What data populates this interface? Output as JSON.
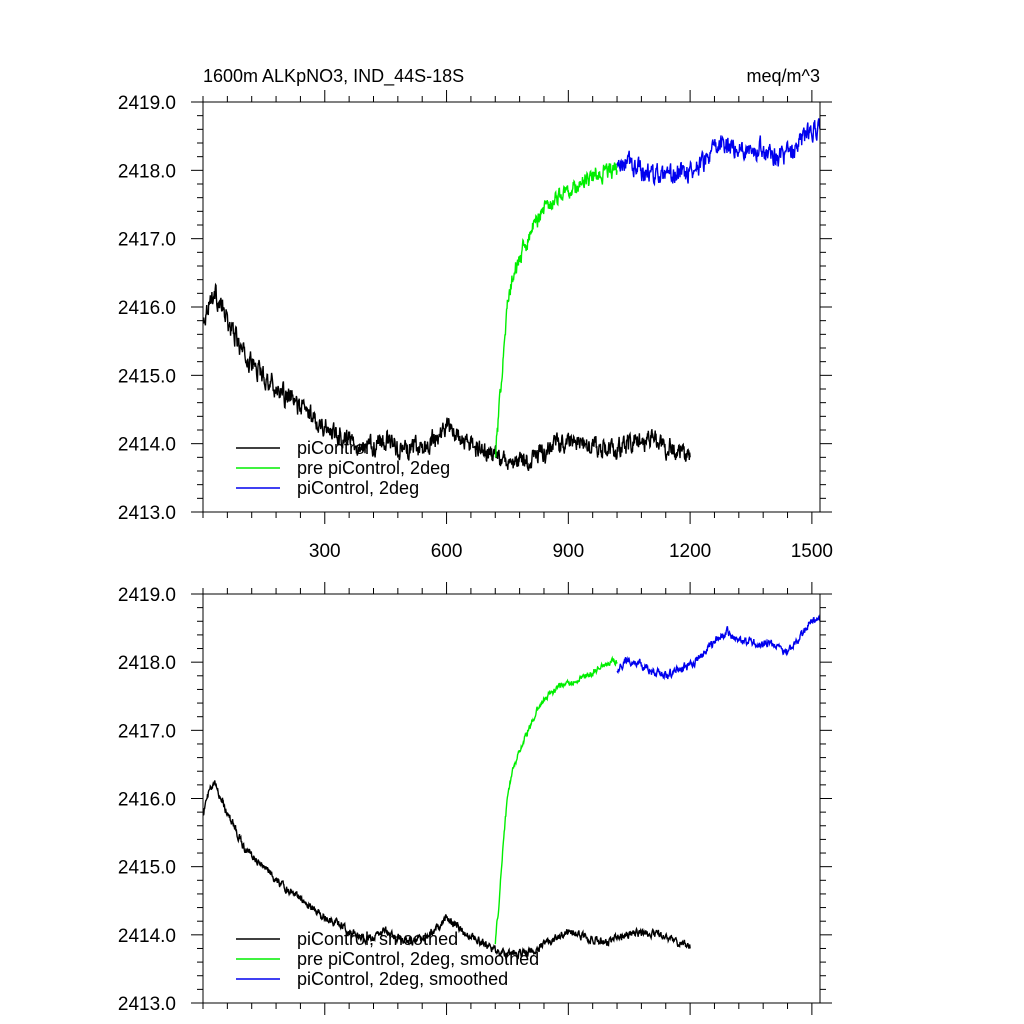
{
  "chart_data": [
    {
      "type": "line",
      "title_left": "1600m ALKpNO3, IND_44S-18S",
      "title_right": "meq/m^3",
      "xlim": [
        0,
        1520
      ],
      "ylim": [
        2413.0,
        2419.0
      ],
      "xticks": [
        300,
        600,
        900,
        1200,
        1500
      ],
      "xtick_labels": [
        "300",
        "600",
        "900",
        "1200",
        "1500"
      ],
      "yticks": [
        2413.0,
        2414.0,
        2415.0,
        2416.0,
        2417.0,
        2418.0,
        2419.0
      ],
      "ytick_labels": [
        "2413.0",
        "2414.0",
        "2415.0",
        "2416.0",
        "2417.0",
        "2418.0",
        "2419.0"
      ],
      "legend_position": "bottom-left",
      "grid": false,
      "series": [
        {
          "name": "piControl",
          "color": "#000000",
          "noise": 0.12,
          "x": [
            1,
            15,
            30,
            60,
            100,
            150,
            200,
            250,
            300,
            350,
            400,
            450,
            500,
            550,
            600,
            650,
            700,
            750,
            800,
            850,
            900,
            950,
            1000,
            1050,
            1100,
            1150,
            1200
          ],
          "y": [
            2415.8,
            2416.1,
            2416.2,
            2415.8,
            2415.3,
            2415.0,
            2414.7,
            2414.5,
            2414.25,
            2414.1,
            2413.95,
            2414.05,
            2413.9,
            2413.95,
            2414.25,
            2414.0,
            2413.85,
            2413.7,
            2413.75,
            2413.9,
            2414.05,
            2413.95,
            2413.9,
            2414.0,
            2414.05,
            2413.95,
            2413.8
          ]
        },
        {
          "name": "pre piControl, 2deg",
          "color": "#00ee00",
          "noise": 0.1,
          "x": [
            720,
            730,
            740,
            750,
            760,
            770,
            780,
            790,
            800,
            820,
            840,
            860,
            880,
            900,
            920,
            940,
            960,
            980,
            1000,
            1020
          ],
          "y": [
            2413.8,
            2414.5,
            2415.4,
            2416.0,
            2416.35,
            2416.55,
            2416.7,
            2416.85,
            2417.0,
            2417.25,
            2417.45,
            2417.55,
            2417.65,
            2417.7,
            2417.75,
            2417.85,
            2417.9,
            2417.95,
            2418.0,
            2418.0
          ]
        },
        {
          "name": "piControl, 2deg",
          "color": "#0000ee",
          "noise": 0.12,
          "x": [
            1020,
            1050,
            1080,
            1110,
            1140,
            1170,
            1200,
            1230,
            1260,
            1290,
            1320,
            1350,
            1380,
            1410,
            1440,
            1470,
            1500,
            1520
          ],
          "y": [
            2418.05,
            2418.1,
            2418.0,
            2417.95,
            2417.85,
            2417.95,
            2418.0,
            2418.1,
            2418.3,
            2418.4,
            2418.3,
            2418.35,
            2418.3,
            2418.25,
            2418.2,
            2418.4,
            2418.6,
            2418.6
          ]
        }
      ]
    },
    {
      "type": "line",
      "xlim": [
        0,
        1520
      ],
      "ylim": [
        2413.0,
        2419.0
      ],
      "xticks": [
        300,
        600,
        900,
        1200,
        1500
      ],
      "yticks": [
        2413.0,
        2414.0,
        2415.0,
        2416.0,
        2417.0,
        2418.0,
        2419.0
      ],
      "ytick_labels": [
        "2413.0",
        "2414.0",
        "2415.0",
        "2416.0",
        "2417.0",
        "2418.0",
        "2419.0"
      ],
      "legend_position": "bottom-left",
      "grid": false,
      "series": [
        {
          "name": "piControl, smoothed",
          "color": "#000000",
          "noise": 0.05,
          "x": [
            1,
            15,
            30,
            60,
            100,
            150,
            200,
            250,
            300,
            350,
            400,
            450,
            500,
            550,
            600,
            650,
            700,
            750,
            800,
            850,
            900,
            950,
            1000,
            1050,
            1100,
            1150,
            1200
          ],
          "y": [
            2415.8,
            2416.1,
            2416.2,
            2415.8,
            2415.3,
            2415.0,
            2414.7,
            2414.5,
            2414.25,
            2414.1,
            2413.95,
            2414.05,
            2413.9,
            2413.95,
            2414.25,
            2414.0,
            2413.85,
            2413.7,
            2413.75,
            2413.9,
            2414.05,
            2413.95,
            2413.9,
            2414.0,
            2414.05,
            2413.95,
            2413.8
          ]
        },
        {
          "name": "pre piControl, 2deg, smoothed",
          "color": "#00ee00",
          "noise": 0.04,
          "x": [
            720,
            730,
            740,
            750,
            760,
            770,
            780,
            790,
            800,
            820,
            840,
            860,
            880,
            900,
            920,
            940,
            960,
            980,
            1000,
            1020
          ],
          "y": [
            2413.9,
            2414.5,
            2415.4,
            2416.0,
            2416.35,
            2416.55,
            2416.7,
            2416.85,
            2417.0,
            2417.25,
            2417.45,
            2417.55,
            2417.65,
            2417.7,
            2417.72,
            2417.8,
            2417.85,
            2417.95,
            2418.0,
            2418.0
          ]
        },
        {
          "name": "piControl, 2deg, smoothed",
          "color": "#0000ee",
          "noise": 0.05,
          "x": [
            1020,
            1050,
            1080,
            1110,
            1140,
            1170,
            1200,
            1230,
            1260,
            1290,
            1320,
            1350,
            1380,
            1410,
            1440,
            1470,
            1500,
            1520
          ],
          "y": [
            2417.9,
            2418.05,
            2417.95,
            2417.85,
            2417.8,
            2417.9,
            2417.95,
            2418.1,
            2418.3,
            2418.45,
            2418.3,
            2418.3,
            2418.25,
            2418.25,
            2418.15,
            2418.35,
            2418.6,
            2418.6
          ]
        }
      ]
    }
  ]
}
